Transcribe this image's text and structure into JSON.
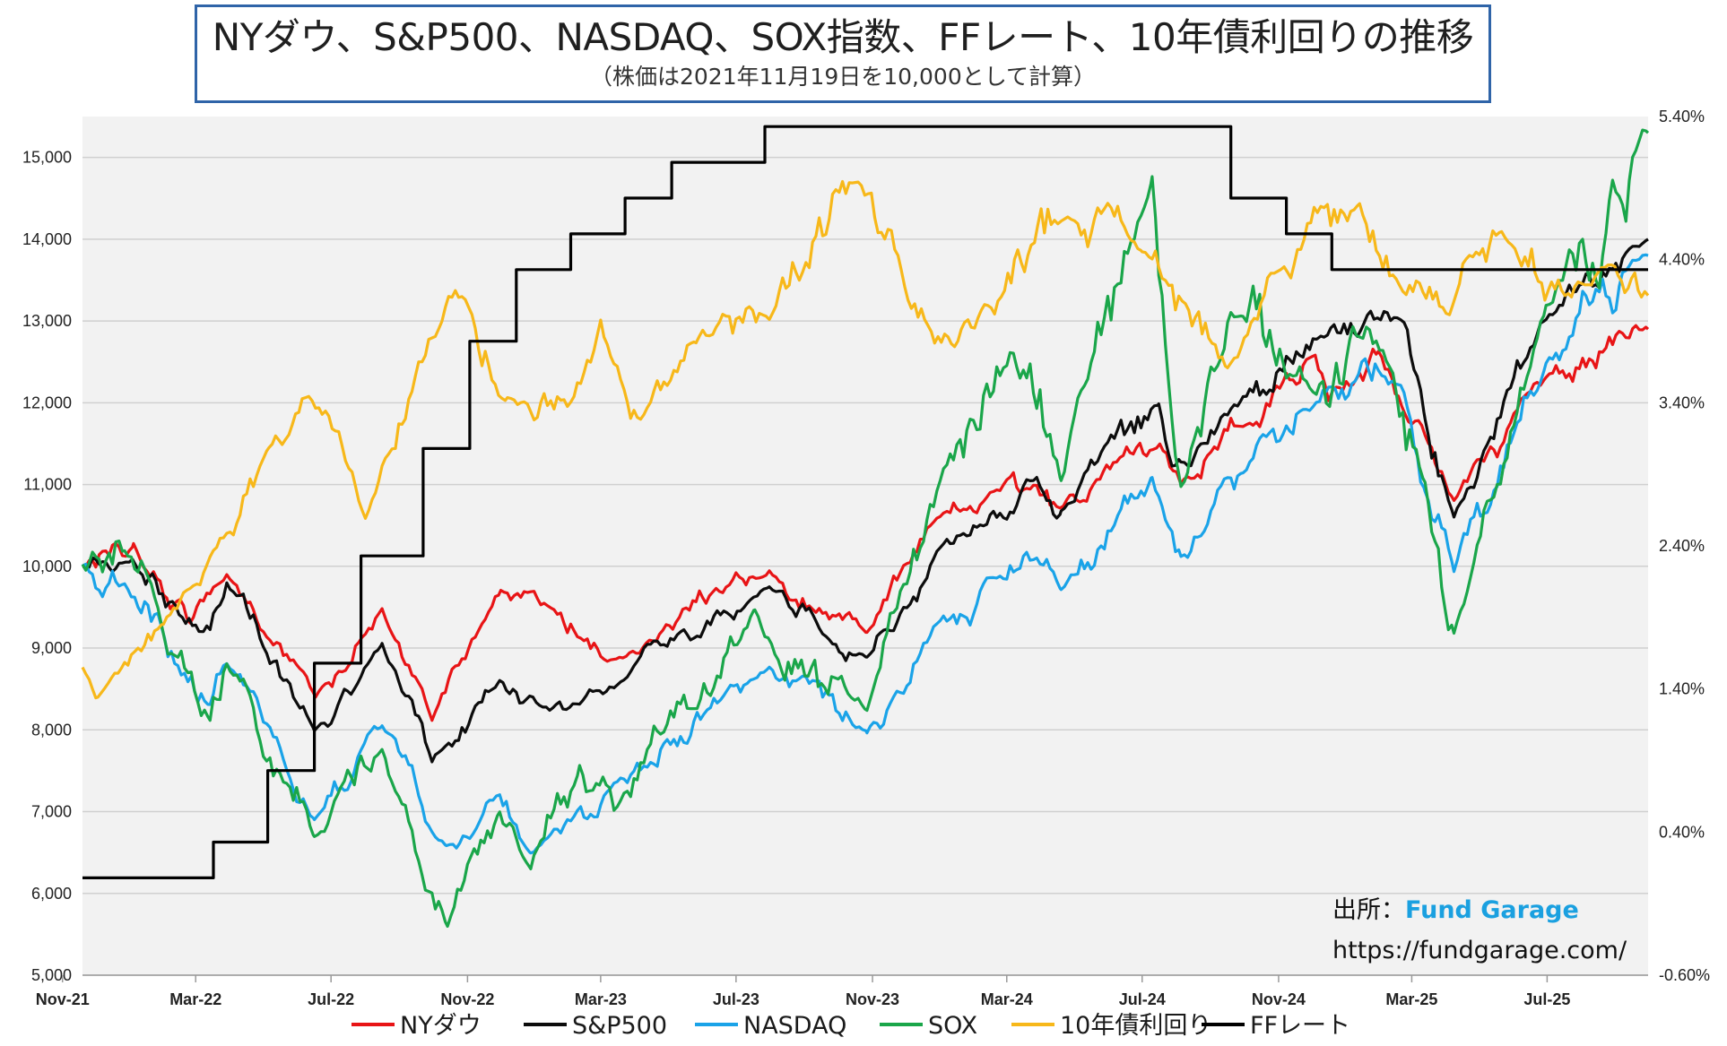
{
  "chart_data": {
    "type": "line",
    "title": "NYダウ、S&P500、NASDAQ、SOX指数、FFレート、10年債利回りの推移",
    "subtitle": "（株価は2021年11月19日を10,000として計算）",
    "x_range": [
      "2021-11-19",
      "2025-09-30"
    ],
    "x_ticks": [
      "Nov-21",
      "Mar-22",
      "Jul-22",
      "Nov-22",
      "Mar-23",
      "Jul-23",
      "Nov-23",
      "Mar-24",
      "Jul-24",
      "Nov-24",
      "Mar-25",
      "Jul-25"
    ],
    "y_left": {
      "ticks": [
        "5,000",
        "6,000",
        "7,000",
        "8,000",
        "9,000",
        "10,000",
        "11,000",
        "12,000",
        "13,000",
        "14,000",
        "15,000"
      ],
      "range": [
        5000,
        15500
      ]
    },
    "y_right": {
      "ticks": [
        "-0.60%",
        "0.40%",
        "1.40%",
        "2.40%",
        "3.40%",
        "4.40%",
        "5.40%"
      ],
      "range": [
        -0.6,
        5.4
      ]
    },
    "grid": true,
    "legend_placement": "bottom",
    "series": [
      {
        "name": "NYダウ",
        "color": "#e81416",
        "axis": "left",
        "volatility": 0.01,
        "points": [
          [
            "2021-11-19",
            10000
          ],
          [
            "2022-01-04",
            10300
          ],
          [
            "2022-02-24",
            9300
          ],
          [
            "2022-03-29",
            9900
          ],
          [
            "2022-06-17",
            8400
          ],
          [
            "2022-08-16",
            9500
          ],
          [
            "2022-09-30",
            8100
          ],
          [
            "2022-12-01",
            9700
          ],
          [
            "2023-01-15",
            9500
          ],
          [
            "2023-03-15",
            8900
          ],
          [
            "2023-07-31",
            9950
          ],
          [
            "2023-10-27",
            9200
          ],
          [
            "2023-12-29",
            10600
          ],
          [
            "2024-03-28",
            11000
          ],
          [
            "2024-04-18",
            10700
          ],
          [
            "2024-07-17",
            11500
          ],
          [
            "2024-08-05",
            11000
          ],
          [
            "2024-09-30",
            11700
          ],
          [
            "2024-12-04",
            12600
          ],
          [
            "2024-12-20",
            12200
          ],
          [
            "2025-01-30",
            12600
          ],
          [
            "2025-03-13",
            11600
          ],
          [
            "2025-04-08",
            10800
          ],
          [
            "2025-06-30",
            12300
          ],
          [
            "2025-09-30",
            12900
          ]
        ]
      },
      {
        "name": "S&P500",
        "color": "#0c0c0c",
        "axis": "left",
        "volatility": 0.011,
        "points": [
          [
            "2021-11-19",
            10000
          ],
          [
            "2022-01-03",
            10100
          ],
          [
            "2022-03-08",
            9200
          ],
          [
            "2022-03-29",
            9800
          ],
          [
            "2022-06-16",
            8000
          ],
          [
            "2022-08-16",
            9050
          ],
          [
            "2022-09-30",
            7600
          ],
          [
            "2022-11-30",
            8600
          ],
          [
            "2023-01-05",
            8300
          ],
          [
            "2023-03-13",
            8500
          ],
          [
            "2023-07-31",
            9750
          ],
          [
            "2023-10-27",
            8900
          ],
          [
            "2023-12-29",
            10200
          ],
          [
            "2024-03-28",
            11100
          ],
          [
            "2024-04-19",
            10700
          ],
          [
            "2024-07-16",
            12000
          ],
          [
            "2024-08-05",
            11300
          ],
          [
            "2024-09-30",
            12100
          ],
          [
            "2024-12-06",
            12800
          ],
          [
            "2025-02-19",
            13000
          ],
          [
            "2025-03-13",
            11800
          ],
          [
            "2025-04-08",
            10600
          ],
          [
            "2025-06-30",
            13000
          ],
          [
            "2025-09-30",
            14000
          ]
        ]
      },
      {
        "name": "NASDAQ",
        "color": "#1aa3e8",
        "axis": "left",
        "volatility": 0.015,
        "points": [
          [
            "2021-11-19",
            10000
          ],
          [
            "2021-12-27",
            9800
          ],
          [
            "2022-03-14",
            8300
          ],
          [
            "2022-03-29",
            8800
          ],
          [
            "2022-06-16",
            6900
          ],
          [
            "2022-08-16",
            8000
          ],
          [
            "2022-10-13",
            6600
          ],
          [
            "2022-11-30",
            7200
          ],
          [
            "2022-12-28",
            6500
          ],
          [
            "2023-07-31",
            8750
          ],
          [
            "2023-10-27",
            7950
          ],
          [
            "2023-12-29",
            9300
          ],
          [
            "2024-03-28",
            10100
          ],
          [
            "2024-04-19",
            9700
          ],
          [
            "2024-07-10",
            11100
          ],
          [
            "2024-08-05",
            10100
          ],
          [
            "2024-09-30",
            11100
          ],
          [
            "2024-12-16",
            12200
          ],
          [
            "2025-02-19",
            12200
          ],
          [
            "2025-03-13",
            10900
          ],
          [
            "2025-04-08",
            9900
          ],
          [
            "2025-06-30",
            12500
          ],
          [
            "2025-09-30",
            13800
          ]
        ]
      },
      {
        "name": "SOX",
        "color": "#1aa64a",
        "axis": "left",
        "volatility": 0.022,
        "points": [
          [
            "2021-11-19",
            10000
          ],
          [
            "2021-12-27",
            10200
          ],
          [
            "2022-03-14",
            8100
          ],
          [
            "2022-03-29",
            8800
          ],
          [
            "2022-06-16",
            6700
          ],
          [
            "2022-08-16",
            7800
          ],
          [
            "2022-10-14",
            5600
          ],
          [
            "2022-11-30",
            7000
          ],
          [
            "2022-12-28",
            6300
          ],
          [
            "2023-02-10",
            7600
          ],
          [
            "2023-03-13",
            7000
          ],
          [
            "2023-07-18",
            9500
          ],
          [
            "2023-10-27",
            8200
          ],
          [
            "2023-12-29",
            10900
          ],
          [
            "2024-03-07",
            12600
          ],
          [
            "2024-04-19",
            11000
          ],
          [
            "2024-07-10",
            14800
          ],
          [
            "2024-08-05",
            11000
          ],
          [
            "2024-09-30",
            13000
          ],
          [
            "2024-11-14",
            12300
          ],
          [
            "2025-01-22",
            12900
          ],
          [
            "2025-03-13",
            11000
          ],
          [
            "2025-04-08",
            9200
          ],
          [
            "2025-06-30",
            13200
          ],
          [
            "2025-09-30",
            15300
          ]
        ]
      },
      {
        "name": "10年債利回り",
        "color": "#f7b81a",
        "axis": "right",
        "volatility": 0.025,
        "points": [
          [
            "2021-11-19",
            1.55
          ],
          [
            "2021-12-03",
            1.35
          ],
          [
            "2022-01-31",
            1.85
          ],
          [
            "2022-03-29",
            2.5
          ],
          [
            "2022-05-06",
            3.1
          ],
          [
            "2022-06-14",
            3.4
          ],
          [
            "2022-08-01",
            2.6
          ],
          [
            "2022-10-21",
            4.2
          ],
          [
            "2022-12-07",
            3.45
          ],
          [
            "2023-02-02",
            3.4
          ],
          [
            "2023-03-01",
            4.0
          ],
          [
            "2023-04-06",
            3.3
          ],
          [
            "2023-05-26",
            3.8
          ],
          [
            "2023-07-31",
            3.95
          ],
          [
            "2023-10-19",
            4.95
          ],
          [
            "2023-12-27",
            3.8
          ],
          [
            "2024-02-01",
            3.9
          ],
          [
            "2024-04-25",
            4.7
          ],
          [
            "2024-07-01",
            4.45
          ],
          [
            "2024-09-16",
            3.65
          ],
          [
            "2024-10-31",
            4.3
          ],
          [
            "2025-01-13",
            4.8
          ],
          [
            "2025-04-04",
            4.0
          ],
          [
            "2025-05-21",
            4.6
          ],
          [
            "2025-08-01",
            4.25
          ],
          [
            "2025-09-30",
            4.15
          ]
        ]
      },
      {
        "name": "FFレート",
        "color": "#000000",
        "axis": "right",
        "step": true,
        "points": [
          [
            "2021-11-19",
            0.08
          ],
          [
            "2022-03-17",
            0.33
          ],
          [
            "2022-05-05",
            0.83
          ],
          [
            "2022-06-16",
            1.58
          ],
          [
            "2022-07-28",
            2.33
          ],
          [
            "2022-09-22",
            3.08
          ],
          [
            "2022-11-03",
            3.83
          ],
          [
            "2022-12-15",
            4.33
          ],
          [
            "2023-02-02",
            4.58
          ],
          [
            "2023-03-23",
            4.83
          ],
          [
            "2023-05-04",
            5.08
          ],
          [
            "2023-07-27",
            5.33
          ],
          [
            "2024-09-19",
            4.83
          ],
          [
            "2024-11-08",
            4.58
          ],
          [
            "2024-12-19",
            4.33
          ],
          [
            "2025-09-30",
            4.33
          ]
        ]
      }
    ]
  },
  "source": {
    "prefix": "出所：",
    "name": "Fund Garage",
    "url": "https://fundgarage.com/"
  }
}
